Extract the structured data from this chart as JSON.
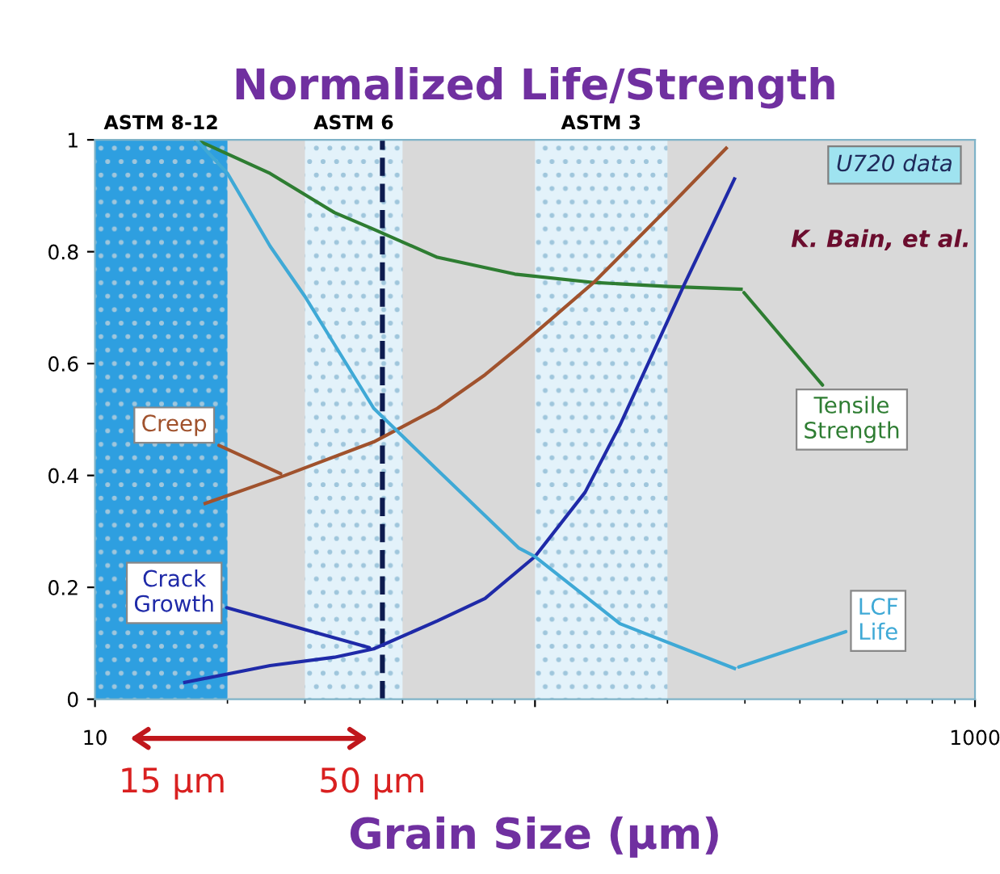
{
  "chart_data": {
    "type": "line",
    "title": "Normalized Life/Strength",
    "xlabel": "Grain Size (µm)",
    "log": "x",
    "xlim": [
      10,
      1000
    ],
    "xticks": [
      10,
      {
        "value": 100,
        "label": null
      },
      1000
    ],
    "ylim": [
      0,
      1
    ],
    "yticks": [
      0,
      0.2,
      0.4,
      0.6,
      0.8,
      1
    ],
    "grid": false,
    "legend": false,
    "marker": "none",
    "line_style": "solid",
    "series": [
      {
        "name": "Tensile Strength",
        "color": "#2e7d32",
        "x": [
          17,
          25,
          35,
          43,
          60,
          90,
          136,
          200,
          294
        ],
        "values": [
          1.0,
          0.94,
          0.87,
          0.84,
          0.79,
          0.76,
          0.745,
          0.738,
          0.733
        ]
      },
      {
        "name": "Creep",
        "color": "#a0522d",
        "x": [
          17.8,
          27,
          43,
          60,
          77,
          92,
          136,
          200,
          272
        ],
        "values": [
          0.35,
          0.4,
          0.46,
          0.52,
          0.58,
          0.63,
          0.745,
          0.877,
          0.985
        ]
      },
      {
        "name": "Crack Growth",
        "color": "#1f2aa8",
        "x": [
          16,
          25,
          35,
          43,
          60,
          77,
          100,
          130,
          156,
          218,
          284
        ],
        "values": [
          0.03,
          0.06,
          0.075,
          0.09,
          0.14,
          0.18,
          0.255,
          0.37,
          0.49,
          0.74,
          0.93
        ]
      },
      {
        "name": "LCF Life",
        "color": "#3fa9d6",
        "x": [
          17,
          20,
          25,
          30,
          43,
          60,
          92,
          100,
          156,
          284
        ],
        "values": [
          1.0,
          0.94,
          0.81,
          0.72,
          0.52,
          0.41,
          0.27,
          0.255,
          0.135,
          0.055
        ]
      }
    ],
    "bands": [
      {
        "axis": "x",
        "from": 10,
        "to": 20,
        "label": "ASTM 8-12",
        "color": "#2e9fe0"
      },
      {
        "axis": "x",
        "from": 30,
        "to": 50,
        "label": "ASTM 6",
        "color": "#e3f2fa"
      },
      {
        "axis": "x",
        "from": 100,
        "to": 200,
        "label": "ASTM 3",
        "color": "#e3f2fa"
      }
    ],
    "ref_lines": [
      {
        "axis": "x",
        "value": 45,
        "label": null,
        "color": "#0d1b4f",
        "line_style": "dashed"
      }
    ],
    "annotations": [
      "U720 data",
      "K. Bain, et al.",
      "15 µm",
      "50 µm"
    ]
  }
}
